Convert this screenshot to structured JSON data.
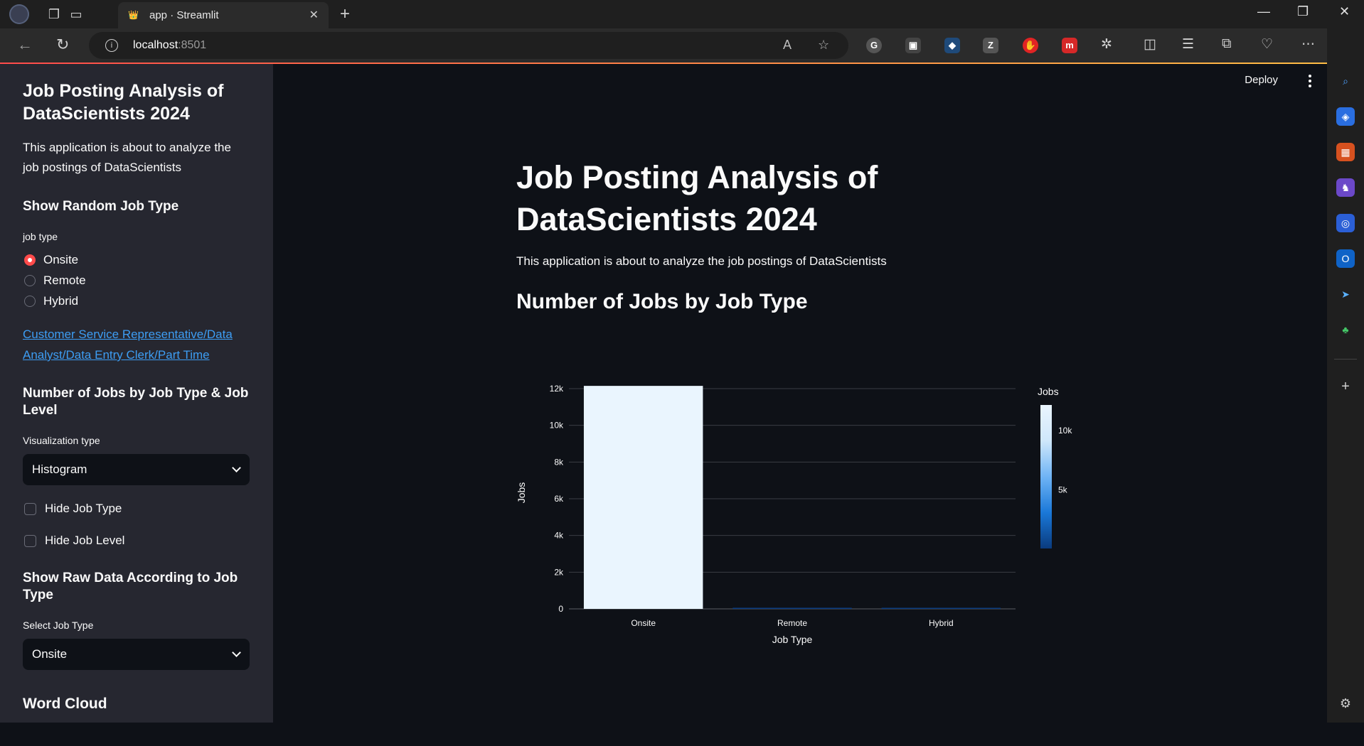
{
  "browser": {
    "tab_title": "app · Streamlit",
    "url_host": "localhost",
    "url_port": ":8501"
  },
  "header": {
    "deploy_label": "Deploy"
  },
  "sidebar": {
    "title": "Job Posting Analysis of DataScientists 2024",
    "description": "This application is about to analyze the job postings of DataScientists",
    "random_heading": "Show Random Job Type",
    "job_type_label": "job type",
    "job_type_options": [
      "Onsite",
      "Remote",
      "Hybrid"
    ],
    "job_type_selected": "Onsite",
    "random_job_link": "Customer Service Representative/Data Analyst/Data Entry Clerk/Part Time",
    "level_heading": "Number of Jobs by Job Type & Job Level",
    "viz_label": "Visualization type",
    "viz_value": "Histogram",
    "hide_job_type_label": "Hide Job Type",
    "hide_job_level_label": "Hide Job Level",
    "raw_heading": "Show Raw Data According to Job Type",
    "select_job_type_label": "Select Job Type",
    "select_job_type_value": "Onsite",
    "wordcloud_heading": "Word Cloud"
  },
  "main": {
    "title": "Job Posting Analysis of DataScientists 2024",
    "description": "This application is about to analyze the job postings of DataScientists",
    "chart_heading": "Number of Jobs by Job Type"
  },
  "colors": {
    "accent": "#ff4b4b",
    "link": "#3d9df3",
    "sidebar_bg": "#262730",
    "main_bg": "#0e1117"
  },
  "chart_data": {
    "type": "bar",
    "categories": [
      "Onsite",
      "Remote",
      "Hybrid"
    ],
    "values": [
      12150,
      60,
      40
    ],
    "xlabel": "Job Type",
    "ylabel": "Jobs",
    "ylim": [
      0,
      12000
    ],
    "yticks": [
      0,
      2000,
      4000,
      6000,
      8000,
      10000,
      12000
    ],
    "ytick_labels": [
      "0",
      "2k",
      "4k",
      "6k",
      "8k",
      "10k",
      "12k"
    ],
    "colorbar": {
      "title": "Jobs",
      "tick_values": [
        5000,
        10000
      ],
      "tick_labels": [
        "5k",
        "10k"
      ],
      "min": 40,
      "max": 12150,
      "colorscale": [
        "#0a3b7e",
        "#1a78d8",
        "#6fb4f5",
        "#cfe7fb",
        "#eaf5fe"
      ]
    },
    "grid": true,
    "legend": "right"
  }
}
